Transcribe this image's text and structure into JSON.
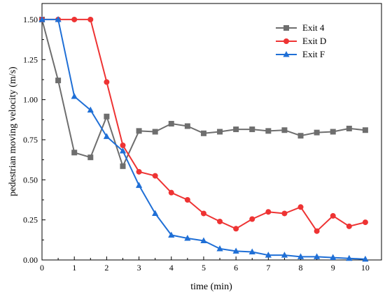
{
  "chart_data": {
    "type": "line",
    "title": "",
    "xlabel": "time (min)",
    "ylabel": "pedestrian moving velocity (m/s)",
    "xlim": [
      0,
      10.5
    ],
    "ylim": [
      0,
      1.6
    ],
    "xticks": [
      0,
      1,
      2,
      3,
      4,
      5,
      6,
      7,
      8,
      9,
      10
    ],
    "xtick_labels": [
      "0",
      "1",
      "2",
      "3",
      "4",
      "5",
      "6",
      "7",
      "8",
      "9",
      "10"
    ],
    "yticks": [
      0,
      0.25,
      0.5,
      0.75,
      1.0,
      1.25,
      1.5
    ],
    "ytick_labels": [
      "0.00",
      "0.25",
      "0.50",
      "0.75",
      "1.00",
      "1.25",
      "1.50"
    ],
    "grid": false,
    "legend_position": "top-right",
    "series": [
      {
        "name": "Exit 4",
        "color": "#6e6e6e",
        "marker": "square",
        "x": [
          0,
          0.5,
          1,
          1.5,
          2,
          2.5,
          3,
          3.5,
          4,
          4.5,
          5,
          5.5,
          6,
          6.5,
          7,
          7.5,
          8,
          8.5,
          9,
          9.5,
          10
        ],
        "y": [
          1.5,
          1.12,
          0.67,
          0.64,
          0.895,
          0.585,
          0.805,
          0.8,
          0.85,
          0.835,
          0.79,
          0.8,
          0.815,
          0.815,
          0.805,
          0.81,
          0.775,
          0.795,
          0.8,
          0.82,
          0.81
        ]
      },
      {
        "name": "Exit D",
        "color": "#ee3333",
        "marker": "circle",
        "x": [
          0,
          0.5,
          1,
          1.5,
          2,
          2.5,
          3,
          3.5,
          4,
          4.5,
          5,
          5.5,
          6,
          6.5,
          7,
          7.5,
          8,
          8.5,
          9,
          9.5,
          10
        ],
        "y": [
          1.5,
          1.5,
          1.5,
          1.5,
          1.11,
          0.715,
          0.55,
          0.525,
          0.42,
          0.375,
          0.29,
          0.24,
          0.195,
          0.255,
          0.3,
          0.29,
          0.33,
          0.18,
          0.275,
          0.21,
          0.235
        ]
      },
      {
        "name": "Exit F",
        "color": "#1f6fd6",
        "marker": "triangle",
        "x": [
          0,
          0.5,
          1,
          1.5,
          2,
          2.5,
          3,
          3.5,
          4,
          4.5,
          5,
          5.5,
          6,
          6.5,
          7,
          7.5,
          8,
          8.5,
          9,
          9.5,
          10
        ],
        "y": [
          1.5,
          1.5,
          1.02,
          0.935,
          0.77,
          0.68,
          0.465,
          0.29,
          0.155,
          0.135,
          0.12,
          0.07,
          0.055,
          0.05,
          0.03,
          0.03,
          0.02,
          0.02,
          0.015,
          0.01,
          0.005
        ]
      }
    ]
  }
}
